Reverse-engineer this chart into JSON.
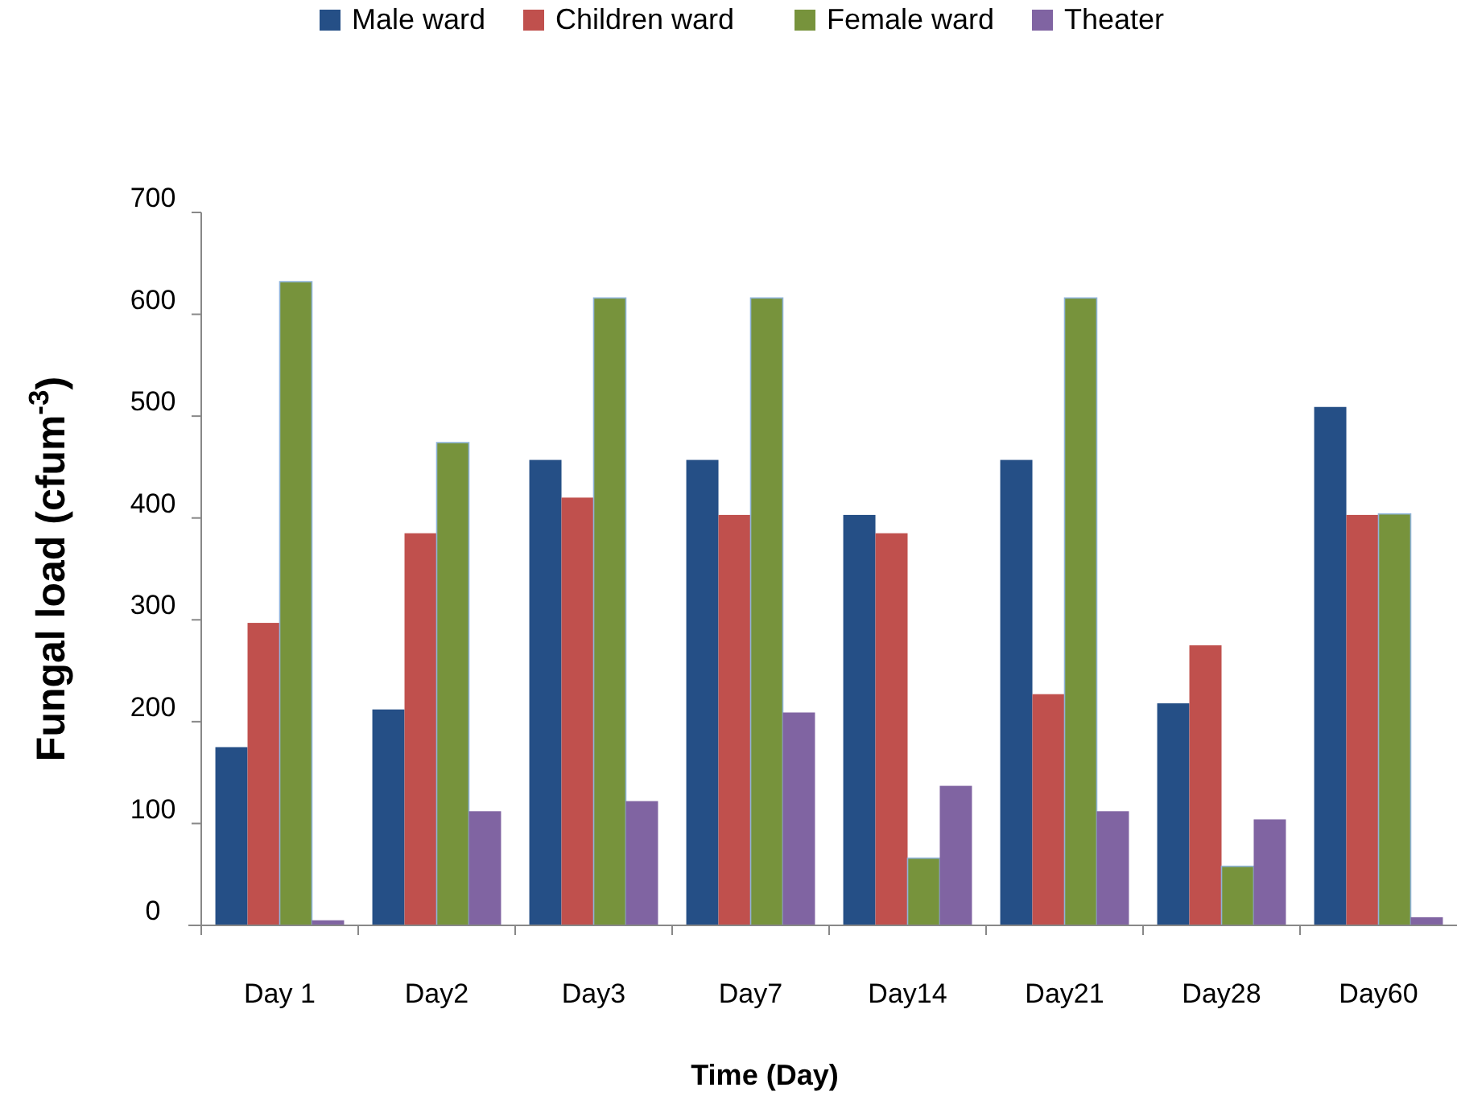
{
  "chart_data": {
    "type": "bar",
    "xlabel": "Time (Day)",
    "ylabel": "Fungal load (cfum$^{-3}$)",
    "categories": [
      "Day 1",
      "Day2",
      "Day3",
      "Day7",
      "Day14",
      "Day21",
      "Day28",
      "Day60"
    ],
    "series": [
      {
        "name": "Male ward",
        "color": "#254f86",
        "values": [
          175,
          212,
          457,
          457,
          403,
          457,
          218,
          509
        ]
      },
      {
        "name": "Children ward",
        "color": "#c0504d",
        "values": [
          297,
          385,
          420,
          403,
          385,
          227,
          275,
          403
        ]
      },
      {
        "name": "Female ward",
        "color": "#77933c",
        "values": [
          632,
          474,
          616,
          616,
          66,
          616,
          58,
          404
        ]
      },
      {
        "name": "Theater",
        "color": "#8064a2",
        "values": [
          5,
          112,
          122,
          209,
          137,
          112,
          104,
          8
        ]
      }
    ],
    "ylim": [
      0,
      700
    ],
    "yticks": [
      0,
      100,
      200,
      300,
      400,
      500,
      600,
      700
    ],
    "grid": false,
    "legend": "top"
  }
}
